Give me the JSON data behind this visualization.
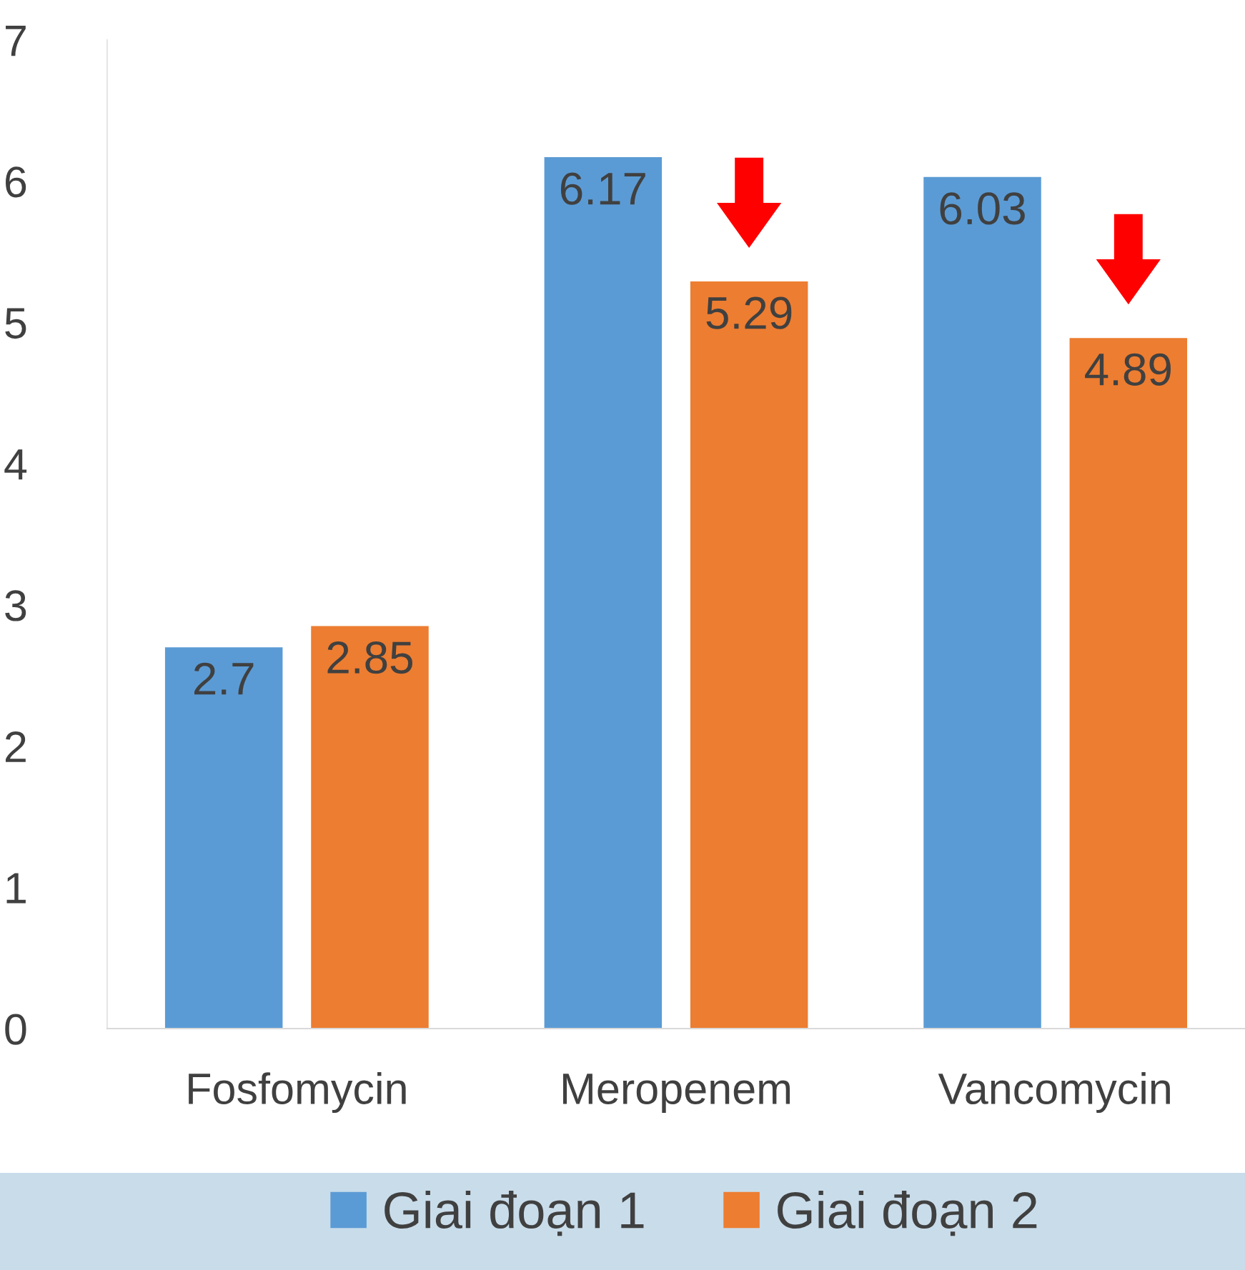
{
  "chart_data": {
    "type": "bar",
    "categories": [
      "Fosfomycin",
      "Meropenem",
      "Vancomycin"
    ],
    "series": [
      {
        "name": "Giai đoạn 1",
        "color": "#5b9bd5",
        "values": [
          2.7,
          6.17,
          6.03
        ]
      },
      {
        "name": "Giai đoạn 2",
        "color": "#ed7d31",
        "values": [
          2.85,
          5.29,
          4.89
        ]
      }
    ],
    "ylim": [
      0,
      7
    ],
    "yticks": [
      0,
      1,
      2,
      3,
      4,
      5,
      6,
      7
    ],
    "grid": false,
    "legend": "bottom",
    "data_labels": true
  }
}
